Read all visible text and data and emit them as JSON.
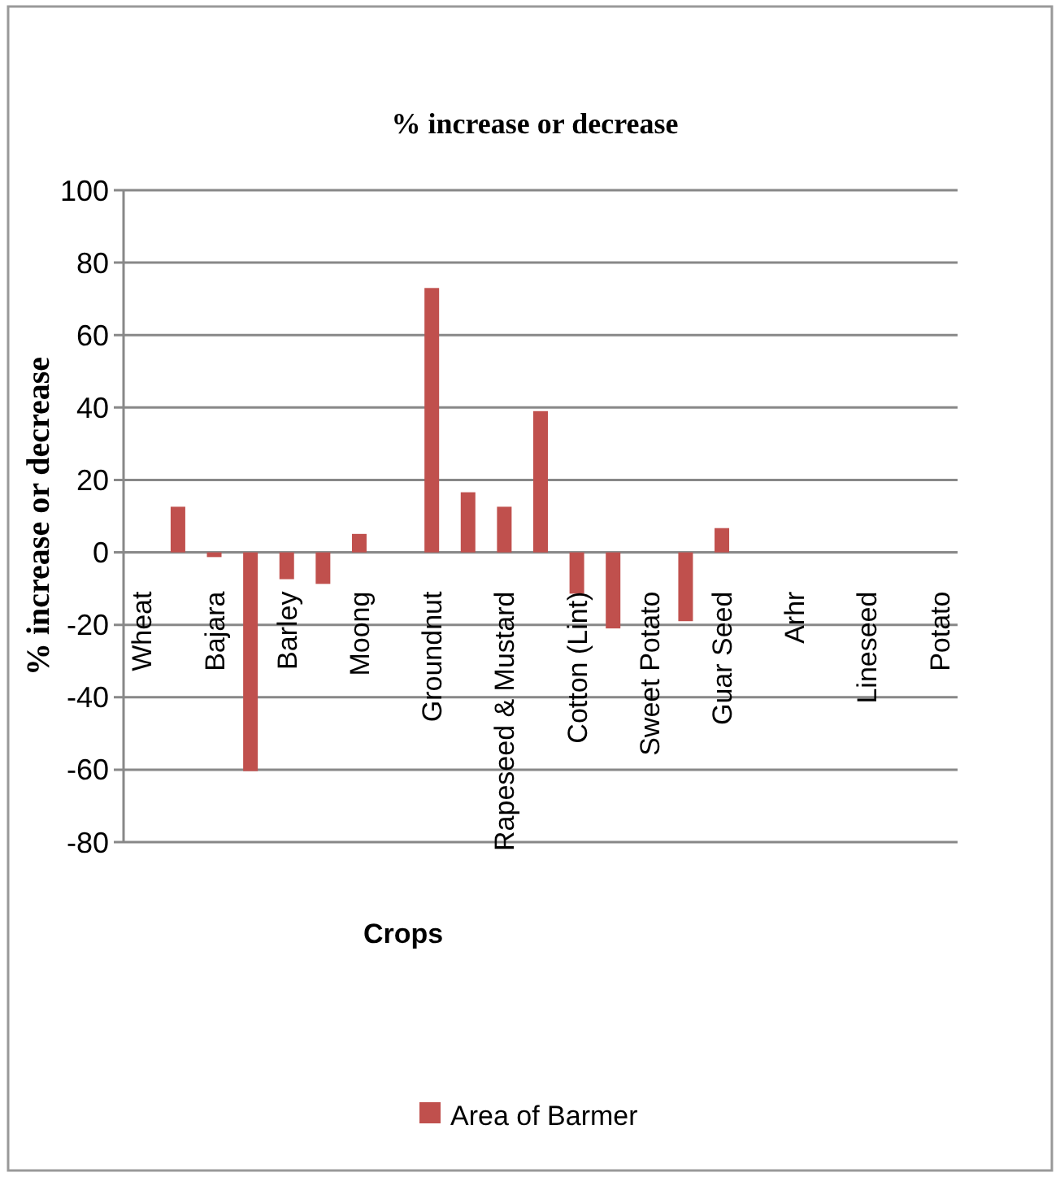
{
  "chart_data": {
    "type": "bar",
    "title": "% increase or decrease",
    "xlabel": "Crops",
    "ylabel": "% increase or decrease",
    "categories": [
      "Wheat",
      null,
      "Bajara",
      null,
      "Barley",
      null,
      "Moong",
      null,
      "Groundnut",
      null,
      "Rapeseed & Mustard",
      null,
      "Cotton (Lint)",
      null,
      "Sweet Potato",
      null,
      "Guar Seed",
      null,
      "Arhr",
      null,
      "Lineseed",
      null,
      "Potato"
    ],
    "series": [
      {
        "name": "Area of Barmer",
        "color": "#c0504d",
        "values": [
          null,
          12.6,
          -1.3,
          -60.4,
          -7.4,
          -8.7,
          5.1,
          null,
          73,
          16.6,
          12.6,
          39,
          -11.4,
          -21,
          null,
          -19,
          6.7,
          null,
          null,
          null,
          null,
          null,
          null
        ]
      }
    ],
    "ylim": [
      -80,
      100
    ],
    "yticks": [
      -80,
      -60,
      -40,
      -20,
      0,
      20,
      40,
      60,
      80,
      100
    ],
    "grid": "y",
    "legend": "bottom"
  }
}
